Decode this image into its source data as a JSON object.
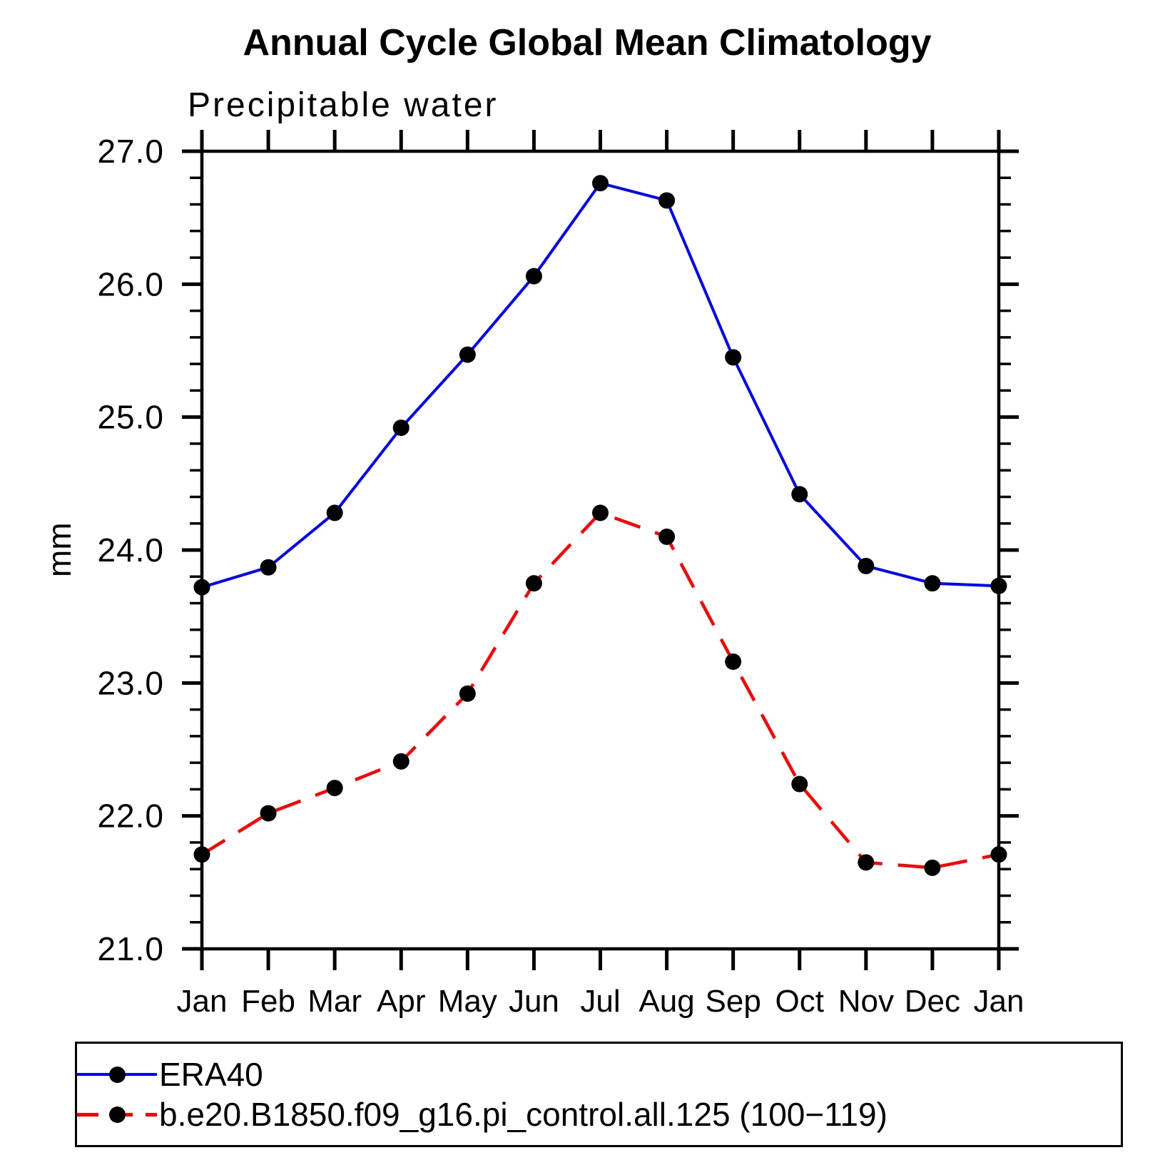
{
  "chart_data": {
    "type": "line",
    "title": "Annual Cycle Global Mean Climatology",
    "subtitle": "Precipitable water",
    "ylabel": "mm",
    "categories": [
      "Jan",
      "Feb",
      "Mar",
      "Apr",
      "May",
      "Jun",
      "Jul",
      "Aug",
      "Sep",
      "Oct",
      "Nov",
      "Dec",
      "Jan"
    ],
    "ylim": [
      21.0,
      27.0
    ],
    "y_major_tick_step": 1.0,
    "y_minor_tick_step": 0.2,
    "y_tick_labels": [
      "27.0",
      "26.0",
      "25.0",
      "24.0",
      "23.0",
      "22.0",
      "21.0"
    ],
    "grid": false,
    "legend_position": "bottom-left",
    "axis_color": "#000000",
    "marker_color": "#000000",
    "series": [
      {
        "name": "ERA40",
        "color": "#0000ff",
        "line_style": "solid",
        "marker": "filled-circle",
        "values": [
          23.72,
          23.87,
          24.28,
          24.92,
          25.47,
          26.06,
          26.76,
          26.63,
          25.45,
          24.42,
          23.88,
          23.75,
          23.73
        ]
      },
      {
        "name": "b.e20.B1850.f09_g16.pi_control.all.125 (100−119)",
        "color": "#ff0000",
        "line_style": "dashed",
        "marker": "filled-circle",
        "values": [
          21.71,
          22.02,
          22.21,
          22.41,
          22.92,
          23.75,
          24.28,
          24.1,
          23.16,
          22.24,
          21.65,
          21.61,
          21.71
        ]
      }
    ]
  }
}
